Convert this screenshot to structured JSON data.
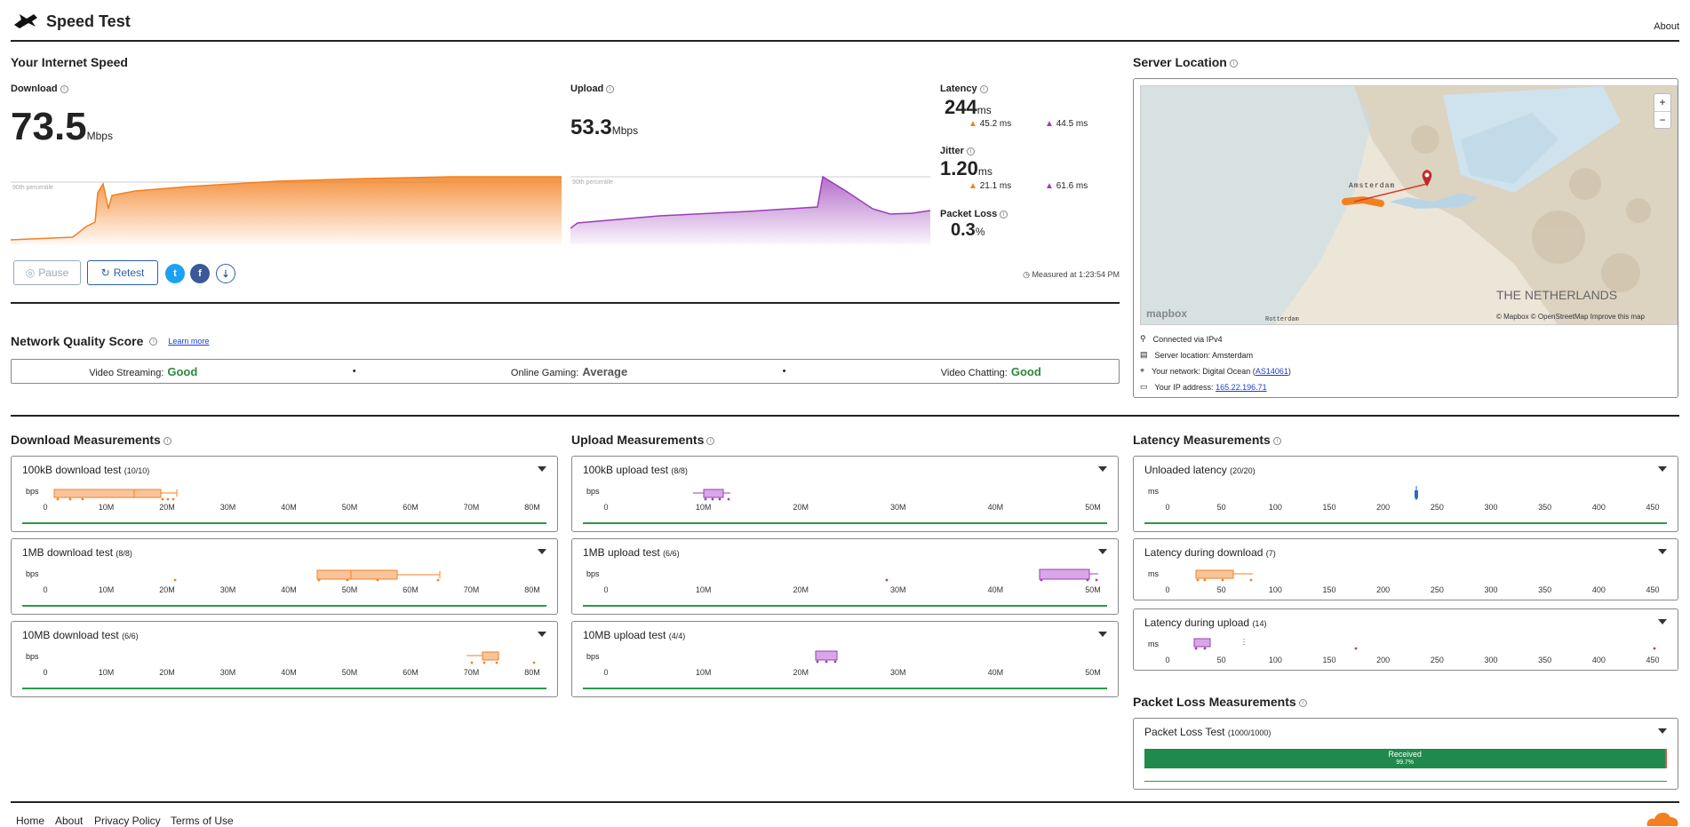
{
  "header": {
    "title": "Speed Test",
    "about": "About"
  },
  "speed": {
    "heading": "Your Internet Speed",
    "download": {
      "label": "Download",
      "value": "73.5",
      "unit": "Mbps"
    },
    "upload": {
      "label": "Upload",
      "value": "53.3",
      "unit": "Mbps"
    },
    "percentile_label": "90th percentile",
    "latency": {
      "label": "Latency",
      "value": "244",
      "unit": "ms",
      "down": "45.2 ms",
      "up": "44.5 ms"
    },
    "jitter": {
      "label": "Jitter",
      "value": "1.20",
      "unit": "ms",
      "down": "21.1 ms",
      "up": "61.6 ms"
    },
    "packet_loss": {
      "label": "Packet Loss",
      "value": "0.3",
      "unit": "%"
    },
    "measured": "Measured at 1:23:54 PM",
    "buttons": {
      "pause": "Pause",
      "retest": "Retest"
    }
  },
  "nqs": {
    "heading": "Network Quality Score",
    "learn_more": "Learn more",
    "items": [
      {
        "label": "Video Streaming:",
        "value": "Good"
      },
      {
        "label": "Online Gaming:",
        "value": "Average"
      },
      {
        "label": "Video Chatting:",
        "value": "Good"
      }
    ]
  },
  "server": {
    "heading": "Server Location",
    "map_labels": {
      "city": "Amsterdam",
      "country": "THE NETHERLANDS",
      "rotterdam": "Rotterdam",
      "brand": "mapbox",
      "attribution": "© Mapbox © OpenStreetMap  Improve this map"
    },
    "zoom_in": "+",
    "zoom_out": "−",
    "connected": "Connected via IPv4",
    "location": "Server location: Amsterdam",
    "network_prefix": "Your network: Digital Ocean (",
    "network_as": "AS14061",
    "network_suffix": ")",
    "ip_prefix": "Your IP address: ",
    "ip": "165.22.196.71"
  },
  "download_meas": {
    "heading": "Download Measurements",
    "unit": "bps",
    "ticks": [
      "0",
      "10M",
      "20M",
      "30M",
      "40M",
      "50M",
      "60M",
      "70M",
      "80M"
    ],
    "tests": [
      {
        "title": "100kB download test",
        "count": "(10/10)"
      },
      {
        "title": "1MB download test",
        "count": "(8/8)"
      },
      {
        "title": "10MB download test",
        "count": "(6/6)"
      }
    ]
  },
  "upload_meas": {
    "heading": "Upload Measurements",
    "unit": "bps",
    "ticks": [
      "0",
      "10M",
      "20M",
      "30M",
      "40M",
      "50M"
    ],
    "tests": [
      {
        "title": "100kB upload test",
        "count": "(8/8)"
      },
      {
        "title": "1MB upload test",
        "count": "(6/6)"
      },
      {
        "title": "10MB upload test",
        "count": "(4/4)"
      }
    ]
  },
  "latency_meas": {
    "heading": "Latency Measurements",
    "unit": "ms",
    "ticks": [
      "0",
      "50",
      "100",
      "150",
      "200",
      "250",
      "300",
      "350",
      "400",
      "450"
    ],
    "tests": [
      {
        "title": "Unloaded latency",
        "count": "(20/20)"
      },
      {
        "title": "Latency during download",
        "count": "(7)"
      },
      {
        "title": "Latency during upload",
        "count": "(14)"
      }
    ]
  },
  "packet_meas": {
    "heading": "Packet Loss Measurements",
    "title": "Packet Loss Test",
    "count": "(1000/1000)",
    "bar_label": "Received",
    "bar_pct": "99.7%",
    "received_fraction": 0.997
  },
  "footer": {
    "home": "Home",
    "about": "About",
    "privacy": "Privacy Policy",
    "terms": "Terms of Use"
  },
  "colors": {
    "download": "#f38020",
    "upload": "#9b3db8",
    "good": "#2a8a3a",
    "received": "#1f8a4c"
  }
}
